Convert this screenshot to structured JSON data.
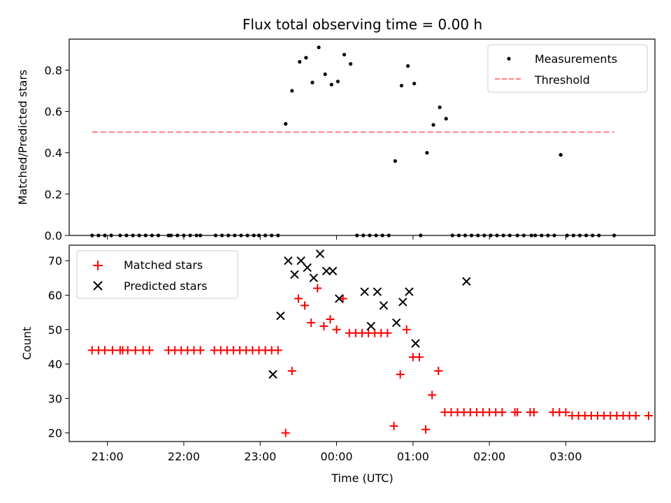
{
  "chart_data": [
    {
      "type": "scatter",
      "title": "Flux total observing time = 0.00 h",
      "xlabel": "",
      "ylabel": "Matched/Predicted stars",
      "ylim": [
        0,
        0.95
      ],
      "yticks": [
        0.0,
        0.2,
        0.4,
        0.6,
        0.8
      ],
      "ytick_labels": [
        "0.0",
        "0.2",
        "0.4",
        "0.6",
        "0.8"
      ],
      "xlim": [
        "20:30",
        "04:10"
      ],
      "legend_position": "top-right",
      "grid": false,
      "series": [
        {
          "name": "Measurements",
          "kind": "scatter",
          "marker": "dot",
          "color": "#000000",
          "x": [
            "20:48",
            "20:53",
            "20:58",
            "21:03",
            "21:10",
            "21:15",
            "21:20",
            "21:25",
            "21:30",
            "21:35",
            "21:40",
            "21:48",
            "21:50",
            "21:55",
            "22:00",
            "22:05",
            "22:10",
            "22:13",
            "22:25",
            "22:30",
            "22:35",
            "22:40",
            "22:45",
            "22:50",
            "22:55",
            "22:59",
            "23:04",
            "23:09",
            "23:14",
            "23:20",
            "23:25",
            "23:31",
            "23:36",
            "23:41",
            "23:46",
            "23:51",
            "23:56",
            "24:01",
            "24:06",
            "24:11",
            "24:16",
            "24:21",
            "24:26",
            "24:31",
            "24:36",
            "24:41",
            "24:46",
            "24:51",
            "24:56",
            "25:01",
            "25:06",
            "25:11",
            "25:16",
            "25:21",
            "25:26",
            "25:31",
            "25:36",
            "25:41",
            "25:46",
            "25:51",
            "25:56",
            "26:01",
            "26:06",
            "26:11",
            "26:16",
            "26:22",
            "26:27",
            "26:33",
            "26:36",
            "26:41",
            "26:46",
            "26:51",
            "26:56",
            "27:01",
            "27:06",
            "27:11",
            "27:16",
            "27:21",
            "27:26",
            "27:38"
          ],
          "y": [
            0,
            0,
            0,
            0,
            0,
            0,
            0,
            0,
            0,
            0,
            0,
            0,
            0,
            0,
            0,
            0,
            0,
            0,
            0,
            0,
            0,
            0,
            0,
            0,
            0,
            0,
            0,
            0,
            0,
            0.54,
            0.7,
            0.84,
            0.86,
            0.74,
            0.91,
            0.78,
            0.73,
            0.745,
            0.875,
            0.83,
            0,
            0,
            0,
            0,
            0,
            0,
            0.36,
            0.725,
            0.82,
            0.735,
            0,
            0.4,
            0.535,
            0.62,
            0.565,
            0,
            0,
            0,
            0,
            0,
            0,
            0,
            0,
            0,
            0,
            0,
            0,
            0,
            0,
            0,
            0,
            0,
            0.39,
            0,
            0,
            0,
            0,
            0,
            0,
            0
          ],
          "x_clean": [
            "20:48",
            "20:53",
            "20:58",
            "21:03",
            "21:10",
            "21:15",
            "21:20",
            "21:23",
            "21:28",
            "21:33",
            "21:38",
            "21:45",
            "21:48",
            "21:53",
            "21:58",
            "22:03",
            "22:08",
            "22:13",
            "22:24",
            "22:29",
            "22:34",
            "22:39",
            "22:44",
            "22:49",
            "22:54",
            "22:59",
            "23:04",
            "23:09",
            "23:14",
            "23:19",
            "23:24",
            "23:29",
            "23:34",
            "23:39",
            "23:44",
            "23:49",
            "23:54",
            "23:59",
            "00:04",
            "00:09",
            "00:14",
            "00:19",
            "00:24",
            "00:29",
            "00:34",
            "00:39",
            "00:44",
            "00:49",
            "00:54",
            "00:59",
            "01:04",
            "01:09",
            "01:14",
            "01:19",
            "01:24",
            "01:29",
            "01:34",
            "01:39",
            "01:44",
            "01:49",
            "01:54",
            "02:00",
            "02:02",
            "02:10",
            "02:12",
            "02:15",
            "02:25",
            "02:30",
            "02:35",
            "02:40",
            "02:45",
            "02:50",
            "02:55",
            "03:00",
            "03:05",
            "03:10",
            "03:15",
            "03:20",
            "03:25",
            "03:38"
          ]
        },
        {
          "name": "Threshold",
          "kind": "line",
          "style": "dashed",
          "color": "#ff7f7f",
          "x": [
            "20:48",
            "03:38"
          ],
          "y": [
            0.5,
            0.5
          ]
        }
      ]
    },
    {
      "type": "scatter",
      "title": "",
      "xlabel": "Time (UTC)",
      "ylabel": "Count",
      "ylim": [
        17.5,
        74.5
      ],
      "yticks": [
        20,
        30,
        40,
        50,
        60,
        70
      ],
      "ytick_labels": [
        "20",
        "30",
        "40",
        "50",
        "60",
        "70"
      ],
      "xlim": [
        "20:30",
        "04:10"
      ],
      "xtick_labels": [
        "21:00",
        "22:00",
        "23:00",
        "00:00",
        "01:00",
        "02:00",
        "03:00"
      ],
      "legend_position": "top-left",
      "grid": false,
      "series": [
        {
          "name": "Matched stars",
          "kind": "scatter",
          "marker": "plus",
          "color": "#ff0000",
          "points": [
            [
              "20:48",
              44
            ],
            [
              "20:53",
              44
            ],
            [
              "20:58",
              44
            ],
            [
              "21:04",
              44
            ],
            [
              "21:10",
              44
            ],
            [
              "21:12",
              44
            ],
            [
              "21:16",
              44
            ],
            [
              "21:22",
              44
            ],
            [
              "21:28",
              44
            ],
            [
              "21:33",
              44
            ],
            [
              "21:48",
              44
            ],
            [
              "21:53",
              44
            ],
            [
              "21:58",
              44
            ],
            [
              "22:03",
              44
            ],
            [
              "22:08",
              44
            ],
            [
              "22:13",
              44
            ],
            [
              "22:24",
              44
            ],
            [
              "22:29",
              44
            ],
            [
              "22:34",
              44
            ],
            [
              "22:39",
              44
            ],
            [
              "22:44",
              44
            ],
            [
              "22:49",
              44
            ],
            [
              "22:54",
              44
            ],
            [
              "22:59",
              44
            ],
            [
              "23:04",
              44
            ],
            [
              "23:09",
              44
            ],
            [
              "23:14",
              44
            ],
            [
              "23:20",
              20
            ],
            [
              "23:25",
              38
            ],
            [
              "23:30",
              59
            ],
            [
              "23:35",
              57
            ],
            [
              "23:40",
              52
            ],
            [
              "23:45",
              62
            ],
            [
              "23:50",
              51
            ],
            [
              "23:55",
              53
            ],
            [
              "24:00",
              50
            ],
            [
              "24:05",
              59
            ],
            [
              "24:10",
              49
            ],
            [
              "24:15",
              49
            ],
            [
              "24:20",
              49
            ],
            [
              "24:25",
              49
            ],
            [
              "24:30",
              49
            ],
            [
              "24:35",
              49
            ],
            [
              "24:40",
              49
            ],
            [
              "24:45",
              22
            ],
            [
              "24:50",
              37
            ],
            [
              "24:55",
              50
            ],
            [
              "25:00",
              42
            ],
            [
              "25:05",
              42
            ],
            [
              "25:10",
              21
            ],
            [
              "25:15",
              31
            ],
            [
              "25:20",
              38
            ],
            [
              "25:25",
              26
            ],
            [
              "25:30",
              26
            ],
            [
              "25:35",
              26
            ],
            [
              "25:40",
              26
            ],
            [
              "25:45",
              26
            ],
            [
              "25:50",
              26
            ],
            [
              "25:55",
              26
            ],
            [
              "26:00",
              26
            ],
            [
              "26:05",
              26
            ],
            [
              "26:10",
              26
            ],
            [
              "26:20",
              26
            ],
            [
              "26:22",
              26
            ],
            [
              "26:32",
              26
            ],
            [
              "26:35",
              26
            ],
            [
              "26:50",
              26
            ],
            [
              "26:55",
              26
            ],
            [
              "27:00",
              26
            ],
            [
              "27:05",
              25
            ],
            [
              "27:10",
              25
            ],
            [
              "27:15",
              25
            ],
            [
              "27:20",
              25
            ],
            [
              "27:25",
              25
            ],
            [
              "27:30",
              25
            ],
            [
              "27:35",
              25
            ],
            [
              "27:40",
              25
            ],
            [
              "27:45",
              25
            ],
            [
              "27:50",
              25
            ],
            [
              "27:55",
              25
            ],
            [
              "28:05",
              25
            ]
          ]
        },
        {
          "name": "Predicted stars",
          "kind": "scatter",
          "marker": "x",
          "color": "#000000",
          "points": [
            [
              "23:10",
              37
            ],
            [
              "23:16",
              54
            ],
            [
              "23:22",
              70
            ],
            [
              "23:27",
              66
            ],
            [
              "23:32",
              70
            ],
            [
              "23:37",
              68
            ],
            [
              "23:42",
              65
            ],
            [
              "23:47",
              72
            ],
            [
              "23:52",
              67
            ],
            [
              "23:57",
              67
            ],
            [
              "24:02",
              59
            ],
            [
              "24:22",
              61
            ],
            [
              "24:27",
              51
            ],
            [
              "24:32",
              61
            ],
            [
              "24:37",
              57
            ],
            [
              "24:47",
              52
            ],
            [
              "24:52",
              58
            ],
            [
              "24:57",
              61
            ],
            [
              "25:02",
              46
            ],
            [
              "25:42",
              64
            ]
          ]
        }
      ]
    }
  ]
}
